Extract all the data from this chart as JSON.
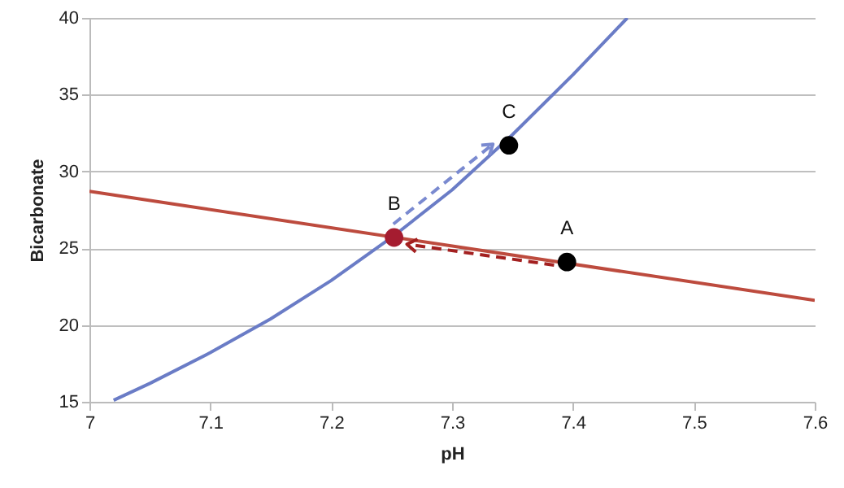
{
  "chart_data": {
    "type": "line",
    "xlabel": "pH",
    "ylabel": "Bicarbonate",
    "xlim": [
      7,
      7.6
    ],
    "ylim": [
      15,
      40
    ],
    "xticks": [
      7,
      7.1,
      7.2,
      7.3,
      7.4,
      7.5,
      7.6
    ],
    "yticks": [
      15,
      20,
      25,
      30,
      35,
      40
    ],
    "grid": "y",
    "series": [
      {
        "color": "#6a7cc6",
        "x": [
          7.02,
          7.05,
          7.1,
          7.15,
          7.2,
          7.25,
          7.3,
          7.35,
          7.4,
          7.445
        ],
        "values": [
          15.1,
          16.2,
          18.2,
          20.4,
          22.9,
          25.7,
          28.8,
          32.4,
          36.3,
          40
        ]
      },
      {
        "color": "#bd4b3e",
        "x": [
          7,
          7.6
        ],
        "values": [
          28.7,
          21.6
        ]
      },
      {
        "type": "scatter",
        "marker": "circle",
        "x": [
          7.395,
          7.252,
          7.347
        ],
        "values": [
          24.1,
          25.7,
          31.7
        ],
        "colors": [
          "#000000",
          "#a51c30",
          "#000000"
        ]
      }
    ],
    "annotations": [
      {
        "text": "A",
        "x": 7.395,
        "y": 24.1
      },
      {
        "text": "B",
        "x": 7.252,
        "y": 25.7
      },
      {
        "text": "C",
        "x": 7.347,
        "y": 31.7
      }
    ]
  }
}
